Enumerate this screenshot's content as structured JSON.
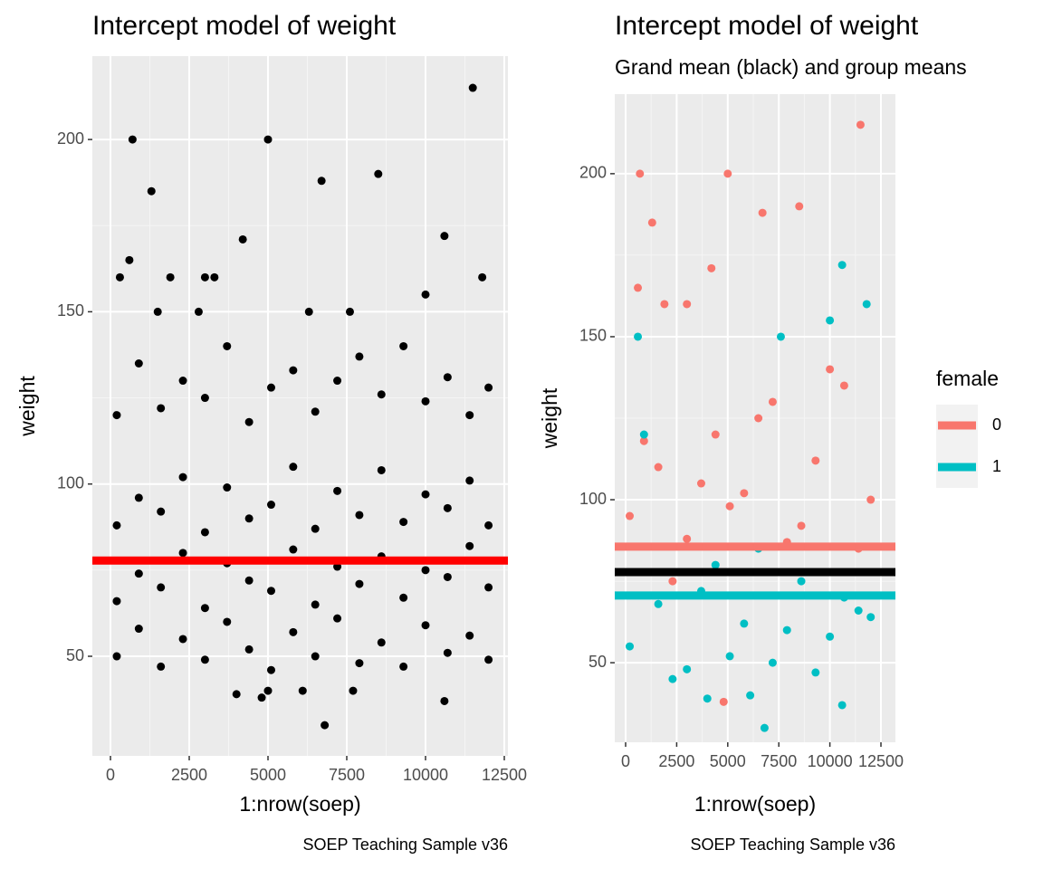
{
  "chart_data": [
    {
      "type": "scatter",
      "title": "Intercept model of weight",
      "x_label": "1:nrow(soep)",
      "y_label": "weight",
      "caption": "SOEP Teaching Sample v36",
      "xlim": [
        -575,
        12615
      ],
      "xticks": [
        0,
        2500,
        5000,
        7500,
        10000,
        12500
      ],
      "ylim": [
        21.1,
        224.2
      ],
      "yticks": [
        50,
        100,
        150,
        200
      ],
      "grid": true,
      "series": [
        {
          "color": "#000000",
          "x": [
            700,
            5000,
            1300,
            11500,
            6700,
            8500,
            4200,
            10600,
            600,
            11800,
            10000,
            300,
            1900,
            3000,
            3300,
            6300,
            7600,
            1500,
            2800,
            6800,
            10600,
            5000,
            4000,
            6100,
            4800,
            7700,
            200,
            200,
            200,
            200,
            900,
            900,
            900,
            900,
            1600,
            1600,
            1600,
            1600,
            2300,
            2300,
            2300,
            2300,
            3000,
            3000,
            3000,
            3000,
            3700,
            3700,
            3700,
            3700,
            4400,
            4400,
            4400,
            4400,
            5100,
            5100,
            5100,
            5100,
            5800,
            5800,
            5800,
            5800,
            6500,
            6500,
            6500,
            6500,
            7200,
            7200,
            7200,
            7200,
            7900,
            7900,
            7900,
            7900,
            8600,
            8600,
            8600,
            8600,
            9300,
            9300,
            9300,
            9300,
            10000,
            10000,
            10000,
            10000,
            10700,
            10700,
            10700,
            10700,
            11400,
            11400,
            11400,
            11400,
            12000,
            12000,
            12000,
            12000
          ],
          "values": [
            200,
            200,
            185,
            215,
            188,
            190,
            171,
            172,
            165,
            160,
            155,
            160,
            160,
            160,
            160,
            150,
            150,
            150,
            150,
            30,
            37,
            40,
            39,
            40,
            38,
            40,
            50,
            66,
            88,
            120,
            58,
            74,
            96,
            135,
            47,
            70,
            92,
            122,
            55,
            80,
            102,
            130,
            49,
            64,
            86,
            125,
            60,
            77,
            99,
            140,
            52,
            72,
            90,
            118,
            46,
            69,
            94,
            128,
            57,
            81,
            105,
            133,
            50,
            65,
            87,
            121,
            61,
            76,
            98,
            130,
            48,
            71,
            91,
            137,
            54,
            79,
            104,
            126,
            47,
            67,
            89,
            140,
            59,
            75,
            97,
            124,
            51,
            73,
            93,
            131,
            56,
            82,
            101,
            120,
            49,
            70,
            88,
            128
          ]
        }
      ],
      "hlines": [
        {
          "value": 77.8,
          "color": "#ff0000"
        }
      ]
    },
    {
      "type": "scatter",
      "title": "Intercept model of weight",
      "subtitle": "Grand mean (black) and group means",
      "x_label": "1:nrow(soep)",
      "y_label": "weight",
      "caption": "SOEP Teaching Sample v36",
      "xlim": [
        -532,
        13209
      ],
      "xticks": [
        0,
        2500,
        5000,
        7500,
        10000,
        12500
      ],
      "ylim": [
        25.6,
        224.4
      ],
      "yticks": [
        50,
        100,
        150,
        200
      ],
      "grid": true,
      "legend_title": "female",
      "series": [
        {
          "name": "0",
          "color": "#f8766d",
          "x": [
            700,
            5000,
            1300,
            11500,
            6700,
            8500,
            4200,
            600,
            3000,
            1900,
            4800,
            200,
            1600,
            3000,
            4400,
            5800,
            7200,
            8600,
            10000,
            11400,
            900,
            2300,
            3700,
            5100,
            6500,
            7900,
            9300,
            10700,
            12000
          ],
          "values": [
            200,
            200,
            185,
            215,
            188,
            190,
            171,
            165,
            160,
            160,
            38,
            95,
            110,
            88,
            120,
            102,
            130,
            92,
            140,
            85,
            118,
            75,
            105,
            98,
            125,
            87,
            112,
            135,
            100
          ]
        },
        {
          "name": "1",
          "color": "#00bfc4",
          "x": [
            10600,
            10000,
            11800,
            600,
            7600,
            6800,
            10600,
            4000,
            6100,
            200,
            1600,
            3000,
            4400,
            5800,
            7200,
            8600,
            10000,
            11400,
            900,
            2300,
            3700,
            5100,
            6500,
            7900,
            9300,
            10700,
            12000
          ],
          "values": [
            172,
            155,
            160,
            150,
            150,
            30,
            37,
            39,
            40,
            55,
            68,
            48,
            80,
            62,
            50,
            75,
            58,
            66,
            120,
            45,
            72,
            52,
            85,
            60,
            47,
            70,
            64
          ]
        }
      ],
      "hlines": [
        {
          "value": 77.8,
          "color": "#000000"
        },
        {
          "value": 85.6,
          "color": "#f8766d"
        },
        {
          "value": 70.6,
          "color": "#00bfc4"
        }
      ]
    }
  ]
}
